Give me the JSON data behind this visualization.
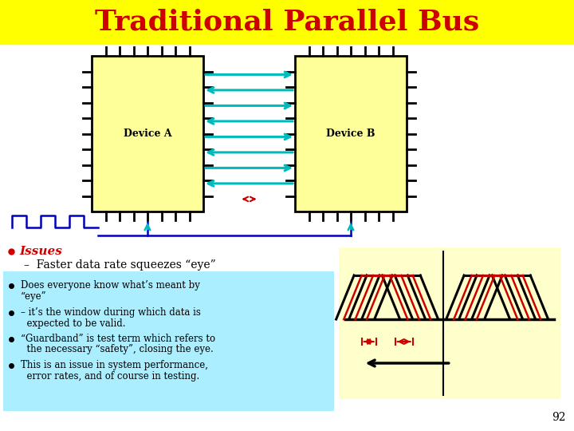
{
  "title": "Traditional Parallel Bus",
  "title_color": "#CC0000",
  "title_bg": "#FFFF00",
  "title_fontsize": 26,
  "device_a_label": "Device A",
  "device_b_label": "Device B",
  "issues_label": "Issues",
  "dash_text": "–  Faster data rate squeezes “eye”",
  "bullet1": "Does everyone know what’s meant by",
  "bullet1b": "“eye”",
  "bullet2": "– it’s the window during which data is",
  "bullet2b": "  expected to be valid.",
  "bullet3": "“Guardband” is test term which refers to",
  "bullet3b": "  the necessary “safety”, closing the eye.",
  "bullet4": "This is an issue in system performance,",
  "bullet4b": "  error rates, and of course in testing.",
  "page_num": "92",
  "bg_color": "#FFFFFF",
  "cyan_color": "#00BBBB",
  "red_color": "#CC0000",
  "blue_color": "#0000BB",
  "yellow_fill": "#FFFF99",
  "light_yellow_bg": "#FFFFCC",
  "light_cyan_bg": "#AAEEFF"
}
